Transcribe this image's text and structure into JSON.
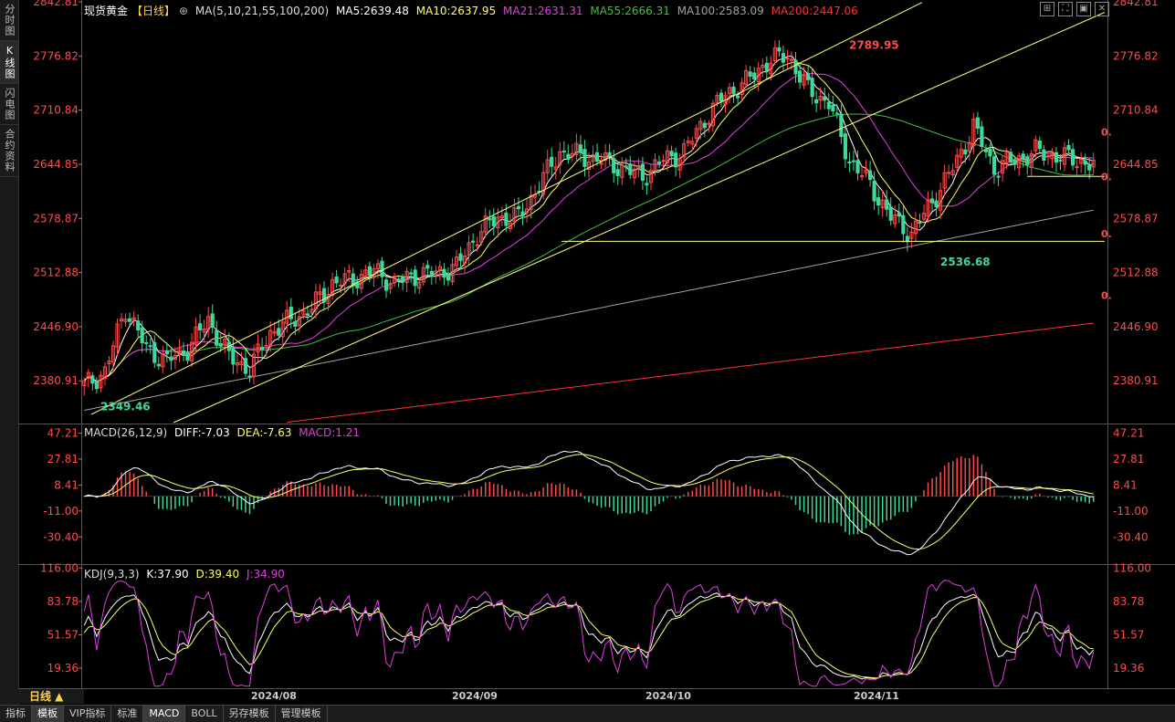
{
  "sidebar": {
    "items": [
      {
        "label": "分时图",
        "active": false
      },
      {
        "label": "K线图",
        "active": true
      },
      {
        "label": "闪电图",
        "active": false
      },
      {
        "label": "合约资料",
        "active": false
      }
    ]
  },
  "header": {
    "title": "现货黄金",
    "period": "【日线】",
    "ma_label": "MA(5,10,21,55,100,200)",
    "ma5": "MA5:2639.48",
    "ma10": "MA10:2637.95",
    "ma21": "MA21:2631.31",
    "ma55": "MA55:2666.31",
    "ma100": "MA100:2583.09",
    "ma200": "MA200:2447.06",
    "corner_icons": [
      "grid-icon",
      "fullscreen-icon",
      "zoom-icon",
      "close-icon"
    ]
  },
  "macd_header": {
    "label": "MACD(26,12,9)",
    "diff": "DIFF:-7.03",
    "dea": "DEA:-7.63",
    "macd": "MACD:1.21"
  },
  "kdj_header": {
    "label": "KDJ(9,3,3)",
    "k": "K:37.90",
    "d": "D:39.40",
    "j": "J:34.90"
  },
  "bottom_tabs": [
    {
      "label": "指标",
      "active": false
    },
    {
      "label": "模板",
      "active": true
    },
    {
      "label": "VIP指标",
      "active": false
    },
    {
      "label": "标准",
      "active": false
    },
    {
      "label": "MACD",
      "active": true
    },
    {
      "label": "BOLL",
      "active": false
    },
    {
      "label": "另存模板",
      "active": false
    },
    {
      "label": "管理模板",
      "active": false
    }
  ],
  "period_button": "日线 ▲",
  "colors": {
    "up": "#ff4b4b",
    "down": "#3ed99a",
    "ma5": "#ffffff",
    "ma10": "#ffff66",
    "ma21": "#e040e0",
    "ma55": "#40c040",
    "ma100": "#a0a0a0",
    "ma200": "#ff3030",
    "axis_text": "#ff4b4b"
  },
  "chart_data": [
    {
      "type": "candlestick",
      "title": "现货黄金【日线】",
      "y_ticks": [
        "2842.81",
        "2776.82",
        "2710.84",
        "2644.85",
        "2578.87",
        "2512.88",
        "2446.90",
        "2380.91"
      ],
      "ylim": [
        2330,
        2845
      ],
      "x_ticks": [
        "2024/08",
        "2024/09",
        "2024/10",
        "2024/11"
      ],
      "annotations": [
        {
          "label": "2789.95"
        },
        {
          "label": "2536.68"
        },
        {
          "label": "2349.46"
        }
      ],
      "right_zero_labels": [
        "0.",
        "0.",
        "0.",
        "0."
      ],
      "trendlines": "ascending channel (two parallel yellow lines), horizontal support near 2550 and 2630"
    },
    {
      "type": "macd",
      "y_ticks": [
        "47.21",
        "27.81",
        "8.41",
        "-11.00",
        "-30.40"
      ],
      "ylim": [
        -50,
        53
      ]
    },
    {
      "type": "kdj",
      "y_ticks": [
        "116.00",
        "83.78",
        "51.57",
        "19.36"
      ],
      "ylim": [
        0,
        118
      ]
    }
  ]
}
